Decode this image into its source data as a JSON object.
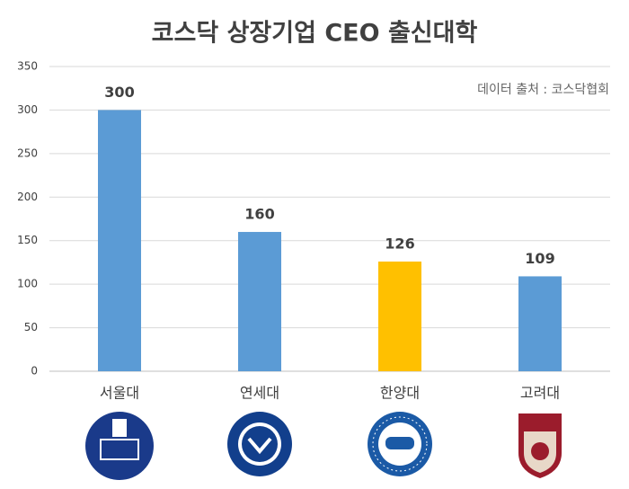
{
  "chart_data": {
    "type": "bar",
    "title": "코스닥 상장기업 CEO 출신대학",
    "source": "데이터 출처 : 코스닥협회",
    "categories": [
      "서울대",
      "연세대",
      "한양대",
      "고려대"
    ],
    "values": [
      300,
      160,
      126,
      109
    ],
    "colors": [
      "#5b9bd5",
      "#5b9bd5",
      "#ffc000",
      "#5b9bd5"
    ],
    "ylim": [
      0,
      350
    ],
    "yticks": [
      0,
      50,
      100,
      150,
      200,
      250,
      300,
      350
    ],
    "grid": true
  }
}
